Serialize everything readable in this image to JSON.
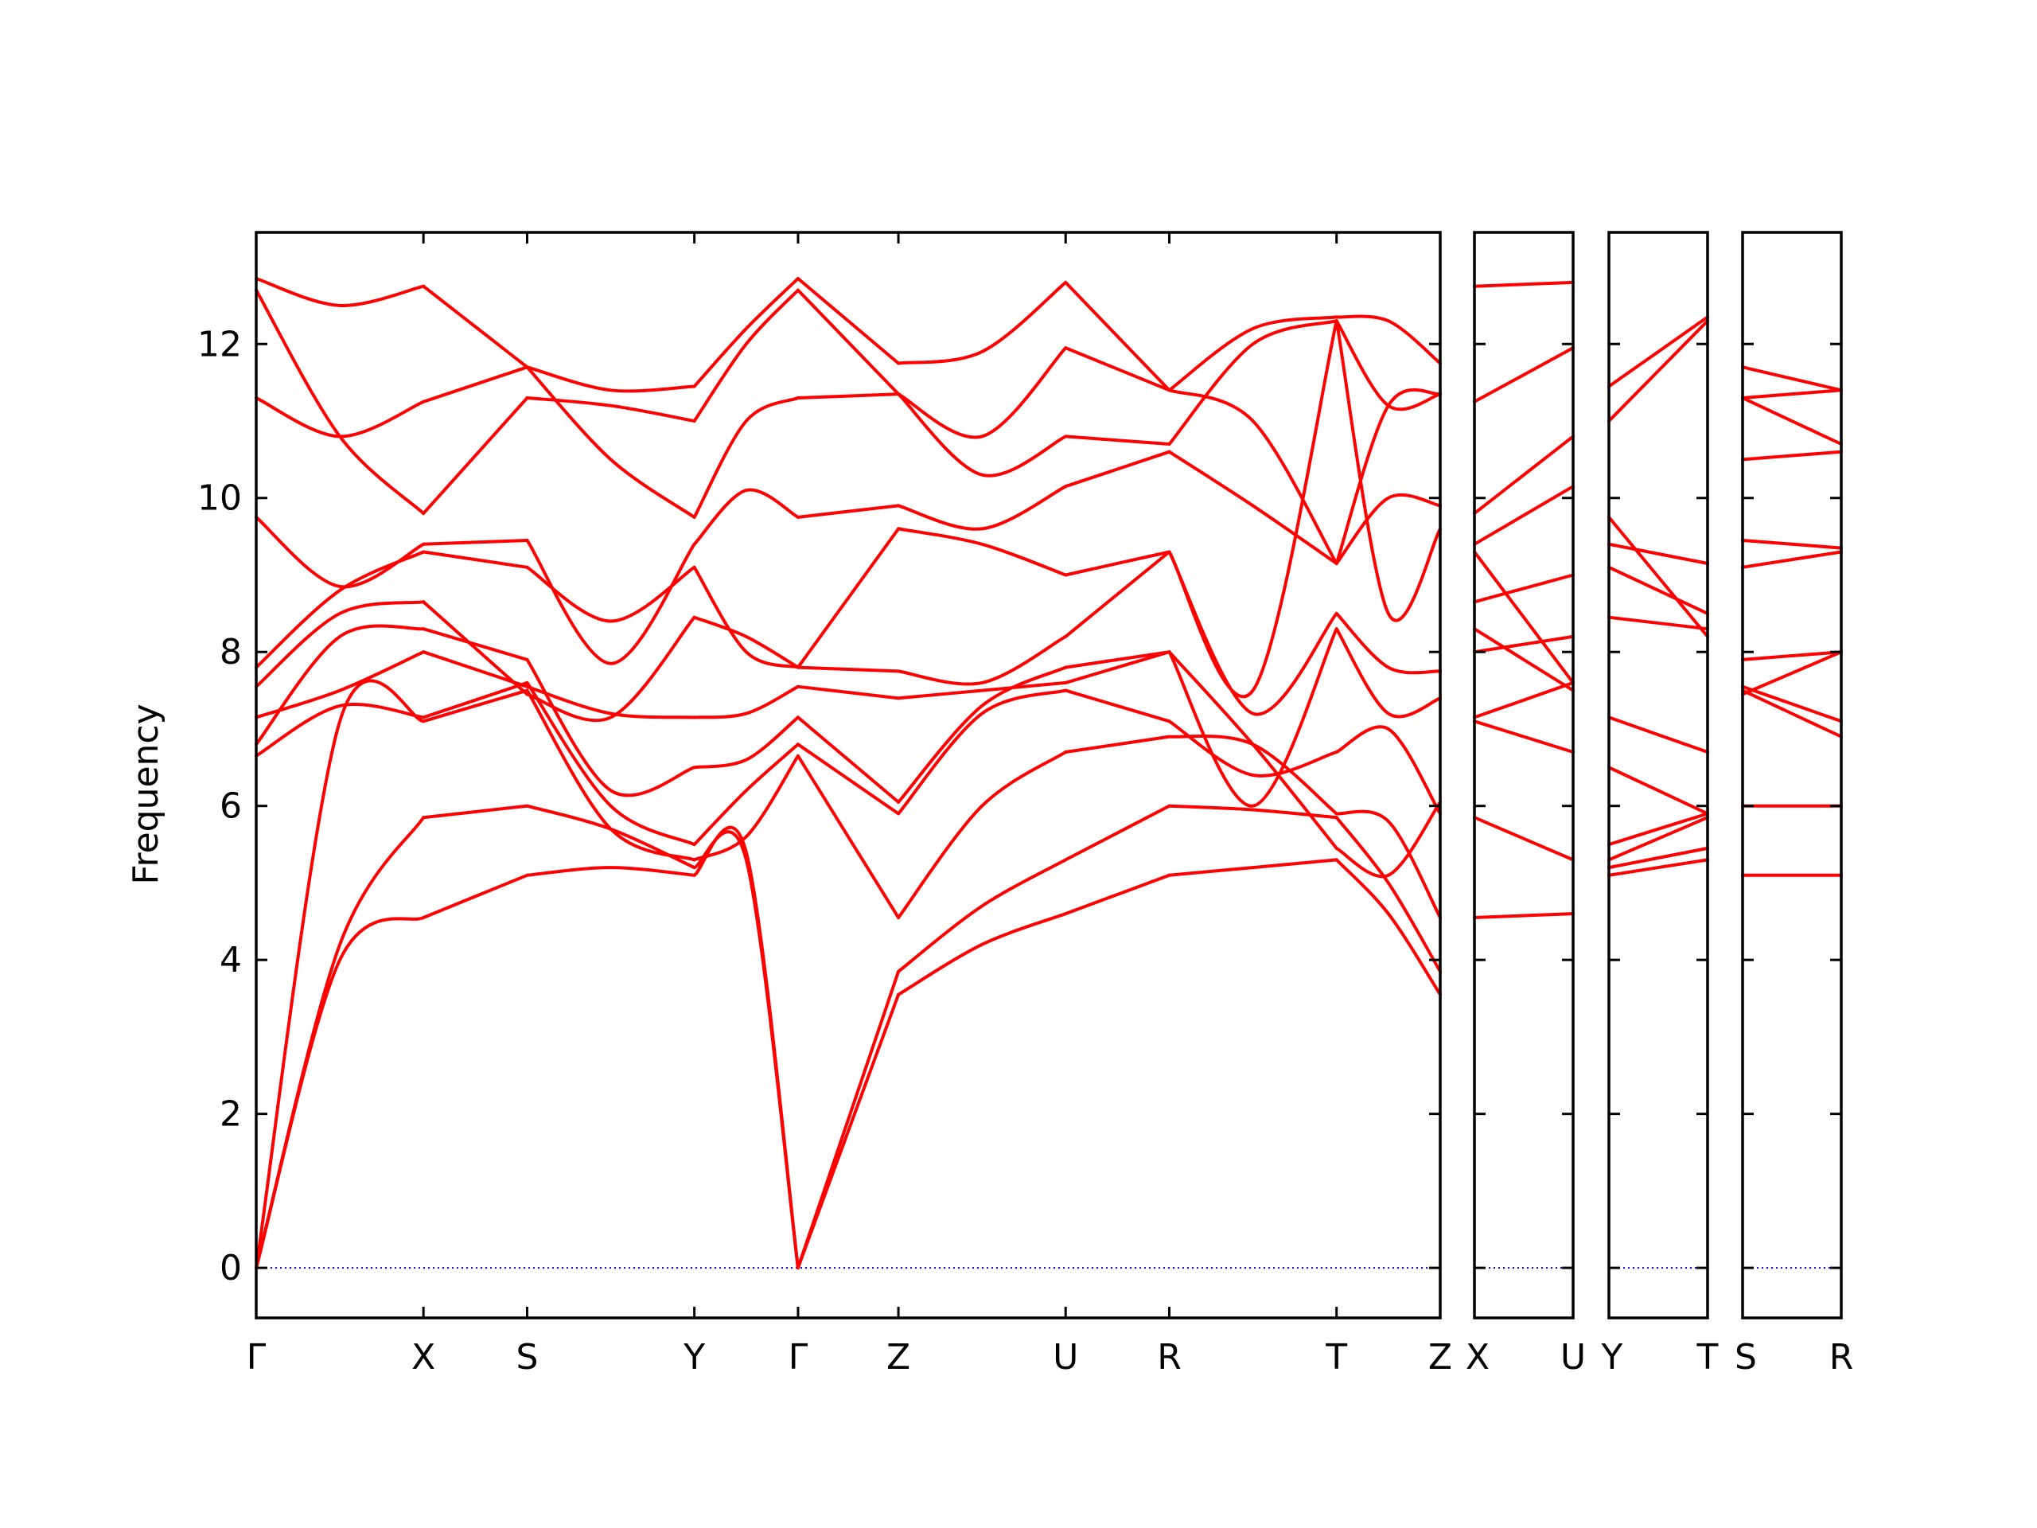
{
  "chart_data": {
    "type": "line",
    "ylabel": "Frequency",
    "ylim": [
      -0.65,
      13.45
    ],
    "yticks": [
      0,
      2,
      4,
      6,
      8,
      10,
      12
    ],
    "colors": {
      "bands": "#ff0000",
      "zero_line": "#0000cc",
      "frame": "#000000"
    },
    "grid": false,
    "segments": [
      {
        "from": "Γ",
        "to": "X",
        "length": 1.0,
        "bands": [
          [
            0,
            4.0,
            4.55
          ],
          [
            0,
            4.2,
            5.85
          ],
          [
            0,
            7.1,
            7.1
          ],
          [
            6.65,
            7.3,
            7.15
          ],
          [
            6.8,
            8.2,
            8.3
          ],
          [
            7.15,
            7.5,
            8.0
          ],
          [
            7.55,
            8.5,
            8.65
          ],
          [
            7.8,
            8.8,
            9.3
          ],
          [
            9.75,
            8.85,
            9.4
          ],
          [
            11.3,
            10.8,
            11.25
          ],
          [
            12.7,
            10.8,
            9.8
          ],
          [
            12.85,
            12.5,
            12.75
          ]
        ]
      },
      {
        "from": "X",
        "to": "S",
        "length": 0.62,
        "bands": [
          [
            4.55,
            5.1
          ],
          [
            5.85,
            6.0
          ],
          [
            7.1,
            7.5
          ],
          [
            7.15,
            7.6
          ],
          [
            8.3,
            7.9
          ],
          [
            8.0,
            7.55
          ],
          [
            8.65,
            7.45
          ],
          [
            9.3,
            9.1
          ],
          [
            9.4,
            9.45
          ],
          [
            11.25,
            11.7
          ],
          [
            9.8,
            11.3
          ],
          [
            12.75,
            11.7
          ]
        ]
      },
      {
        "from": "S",
        "to": "Y",
        "length": 1.0,
        "bands": [
          [
            5.1,
            5.2,
            5.1
          ],
          [
            6.0,
            5.7,
            5.2
          ],
          [
            7.5,
            5.7,
            5.3
          ],
          [
            7.6,
            6.0,
            5.5
          ],
          [
            7.9,
            6.2,
            6.5
          ],
          [
            7.55,
            7.2,
            7.15
          ],
          [
            7.45,
            7.15,
            8.45
          ],
          [
            9.1,
            8.4,
            9.1
          ],
          [
            9.45,
            7.85,
            9.4
          ],
          [
            11.7,
            10.5,
            9.75
          ],
          [
            11.3,
            11.2,
            11.0
          ],
          [
            11.7,
            11.4,
            11.45
          ]
        ]
      },
      {
        "from": "Y",
        "to": "Γ",
        "length": 0.62,
        "bands": [
          [
            5.1,
            5.4,
            0
          ],
          [
            5.2,
            5.3,
            0
          ],
          [
            5.3,
            5.6,
            6.65
          ],
          [
            5.5,
            6.2,
            6.8
          ],
          [
            6.5,
            6.6,
            7.15
          ],
          [
            7.15,
            7.2,
            7.55
          ],
          [
            8.45,
            8.2,
            7.8
          ],
          [
            9.1,
            8.0,
            7.8
          ],
          [
            9.4,
            10.1,
            9.75
          ],
          [
            9.75,
            11.0,
            11.3
          ],
          [
            11.0,
            12.0,
            12.7
          ],
          [
            11.45,
            12.2,
            12.85
          ]
        ]
      },
      {
        "from": "Γ",
        "to": "Z",
        "length": 0.6,
        "bands": [
          [
            0,
            3.55
          ],
          [
            0,
            3.85
          ],
          [
            6.65,
            4.55
          ],
          [
            6.8,
            5.9
          ],
          [
            7.15,
            6.05
          ],
          [
            7.55,
            7.4
          ],
          [
            7.8,
            7.75
          ],
          [
            7.8,
            9.6
          ],
          [
            9.75,
            9.9
          ],
          [
            11.3,
            11.35
          ],
          [
            12.7,
            11.35
          ],
          [
            12.85,
            11.75
          ]
        ]
      },
      {
        "from": "Z",
        "to": "U",
        "length": 1.0,
        "bands": [
          [
            3.55,
            4.2,
            4.6
          ],
          [
            3.85,
            4.7,
            5.3
          ],
          [
            4.55,
            6.0,
            6.7
          ],
          [
            5.9,
            7.2,
            7.5
          ],
          [
            6.05,
            7.3,
            7.8
          ],
          [
            7.4,
            7.5,
            7.6
          ],
          [
            7.75,
            7.6,
            8.2
          ],
          [
            9.6,
            9.4,
            9.0
          ],
          [
            9.9,
            9.6,
            10.15
          ],
          [
            11.35,
            10.3,
            10.8
          ],
          [
            11.35,
            10.8,
            11.95
          ],
          [
            11.75,
            11.9,
            12.8
          ]
        ]
      },
      {
        "from": "U",
        "to": "R",
        "length": 0.62,
        "bands": [
          [
            4.6,
            5.1
          ],
          [
            5.3,
            6.0
          ],
          [
            6.7,
            6.9
          ],
          [
            7.5,
            7.1
          ],
          [
            7.8,
            8.0
          ],
          [
            7.6,
            8.0
          ],
          [
            8.2,
            9.3
          ],
          [
            9.0,
            9.3
          ],
          [
            10.15,
            10.6
          ],
          [
            10.8,
            10.7
          ],
          [
            11.95,
            11.4
          ],
          [
            12.8,
            11.4
          ]
        ]
      },
      {
        "from": "R",
        "to": "T",
        "length": 1.0,
        "bands": [
          [
            5.1,
            5.2,
            5.3
          ],
          [
            6.0,
            5.95,
            5.85
          ],
          [
            6.9,
            6.8,
            5.9
          ],
          [
            7.1,
            6.4,
            6.7
          ],
          [
            8.0,
            6.8,
            5.45
          ],
          [
            8.0,
            6.0,
            8.3
          ],
          [
            9.3,
            7.2,
            8.5
          ],
          [
            9.3,
            7.5,
            12.3
          ],
          [
            10.6,
            9.9,
            9.15
          ],
          [
            10.7,
            12.0,
            12.3
          ],
          [
            11.4,
            11.0,
            9.15
          ],
          [
            11.4,
            12.2,
            12.35
          ]
        ]
      },
      {
        "from": "T",
        "to": "Z",
        "length": 0.62,
        "bands": [
          [
            5.3,
            4.6,
            3.55
          ],
          [
            5.85,
            5.0,
            3.85
          ],
          [
            5.9,
            5.8,
            4.55
          ],
          [
            6.7,
            7.0,
            5.9
          ],
          [
            5.45,
            5.1,
            6.05
          ],
          [
            8.3,
            7.2,
            7.4
          ],
          [
            8.5,
            7.8,
            7.75
          ],
          [
            12.3,
            8.5,
            9.6
          ],
          [
            9.15,
            10.0,
            9.9
          ],
          [
            12.3,
            11.2,
            11.35
          ],
          [
            9.15,
            11.2,
            11.35
          ],
          [
            12.35,
            12.3,
            11.75
          ]
        ]
      },
      {
        "from": "X",
        "to": "U",
        "length": 0.62,
        "bands": [
          [
            4.55,
            4.6
          ],
          [
            5.85,
            5.3
          ],
          [
            7.1,
            6.7
          ],
          [
            7.15,
            7.6
          ],
          [
            8.0,
            8.2
          ],
          [
            8.3,
            7.5
          ],
          [
            8.65,
            9.0
          ],
          [
            9.3,
            7.6
          ],
          [
            9.4,
            10.15
          ],
          [
            9.8,
            10.8
          ],
          [
            11.25,
            11.95
          ],
          [
            12.75,
            12.8
          ]
        ]
      },
      {
        "from": "Y",
        "to": "T",
        "length": 0.62,
        "bands": [
          [
            5.1,
            5.3
          ],
          [
            5.2,
            5.45
          ],
          [
            5.3,
            5.85
          ],
          [
            5.5,
            5.9
          ],
          [
            6.5,
            5.9
          ],
          [
            7.15,
            6.7
          ],
          [
            8.45,
            8.3
          ],
          [
            9.1,
            8.5
          ],
          [
            9.4,
            9.15
          ],
          [
            9.75,
            8.2
          ],
          [
            11.0,
            12.3
          ],
          [
            11.45,
            12.35
          ]
        ]
      },
      {
        "from": "S",
        "to": "R",
        "length": 0.62,
        "bands": [
          [
            5.1,
            5.1
          ],
          [
            6.0,
            6.0
          ],
          [
            7.5,
            6.9
          ],
          [
            7.55,
            7.1
          ],
          [
            7.45,
            8.0
          ],
          [
            7.9,
            8.0
          ],
          [
            9.1,
            9.3
          ],
          [
            9.45,
            9.35
          ],
          [
            10.5,
            10.6
          ],
          [
            11.3,
            10.7
          ],
          [
            11.3,
            11.4
          ],
          [
            11.7,
            11.4
          ]
        ]
      }
    ],
    "panels": [
      {
        "segments": [
          0,
          1,
          2,
          3,
          4,
          5,
          6,
          7,
          8
        ],
        "labels": [
          "Γ",
          "X",
          "S",
          "Y",
          "Γ",
          "Z",
          "U",
          "R",
          "T",
          "Z"
        ]
      },
      {
        "segments": [
          9
        ],
        "labels": [
          "X",
          "U"
        ]
      },
      {
        "segments": [
          10
        ],
        "labels": [
          "Y",
          "T"
        ]
      },
      {
        "segments": [
          11
        ],
        "labels": [
          "S",
          "R"
        ]
      }
    ]
  }
}
